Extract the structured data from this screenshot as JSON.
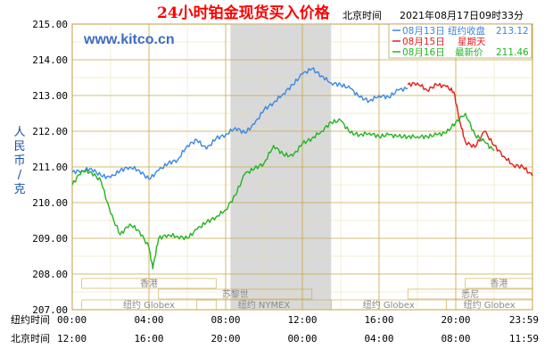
{
  "chart_data": {
    "type": "line",
    "title": "24小时铂金现货买入价格",
    "header_right": {
      "timezone_label": "北京时间",
      "timestamp": "2021年08月17日09时33分"
    },
    "source_text": "www.kitco.cn",
    "ylabel": "人民币/克",
    "ylim": [
      207,
      215
    ],
    "yticks": [
      "215.00",
      "214.00",
      "213.00",
      "212.00",
      "211.00",
      "210.00",
      "209.00",
      "208.00",
      "207.00"
    ],
    "xaxis_rows": [
      {
        "label": "纽约时间",
        "ticks": [
          "00:00",
          "04:00",
          "08:00",
          "12:00",
          "16:00",
          "20:00",
          "23:59"
        ]
      },
      {
        "label": "北京时间",
        "ticks": [
          "12:00",
          "16:00",
          "20:00",
          "00:00",
          "04:00",
          "08:00",
          "11:59"
        ]
      }
    ],
    "x_hours_ny": [
      0,
      4,
      8,
      12,
      16,
      20,
      24
    ],
    "shaded_region_ny_hours": [
      8.25,
      13.5
    ],
    "legend": [
      {
        "text": "08月13日",
        "extra": "纽约收盘",
        "value": "213.12",
        "color": "#3b88e0"
      },
      {
        "text": "08月15日",
        "extra": "星期天",
        "value": "",
        "color": "#e51c1c"
      },
      {
        "text": "08月16日",
        "extra": "最新价",
        "value": "211.46",
        "color": "#22b422"
      }
    ],
    "sessions": [
      {
        "label": "香港",
        "start": 0.5,
        "end": 7.5,
        "row": 0
      },
      {
        "label": "苏黎世",
        "start": 4.5,
        "end": 12.5,
        "row": 1
      },
      {
        "label": "纽约 NYMEX",
        "start": 6.5,
        "end": 13.5,
        "row": 2
      },
      {
        "label": "纽约 Globex",
        "start": 0.5,
        "end": 7.5,
        "row": 2
      },
      {
        "label": "纽约 Globex",
        "start": 13.5,
        "end": 19.5,
        "row": 2
      },
      {
        "label": "悉尼",
        "start": 17.5,
        "end": 24,
        "row": 1
      },
      {
        "label": "香港",
        "start": 20.5,
        "end": 24,
        "row": 0
      },
      {
        "label": "纽约 Globex",
        "start": 19.5,
        "end": 24,
        "row": 2
      }
    ],
    "series": [
      {
        "key": "blue",
        "color": "#3b88e0",
        "x": [
          0,
          0.5,
          1,
          1.5,
          2,
          2.5,
          3,
          3.5,
          4,
          4.5,
          5,
          5.5,
          6,
          6.5,
          7,
          7.5,
          8,
          8.5,
          9,
          9.5,
          10,
          10.5,
          11,
          11.5,
          12,
          12.5,
          13,
          13.5,
          14,
          14.5,
          15,
          15.5,
          16,
          16.5,
          17,
          17.5
        ],
        "y": [
          210.85,
          210.9,
          210.95,
          210.75,
          210.7,
          210.9,
          211.0,
          210.9,
          210.65,
          210.9,
          211.1,
          211.2,
          211.6,
          211.75,
          211.5,
          211.8,
          211.9,
          212.1,
          211.95,
          212.2,
          212.6,
          212.8,
          213.05,
          213.3,
          213.6,
          213.75,
          213.55,
          213.35,
          213.3,
          213.2,
          212.95,
          212.85,
          213.0,
          212.95,
          213.15,
          213.2
        ]
      },
      {
        "key": "red",
        "color": "#e51c1c",
        "x": [
          17.5,
          18,
          18.5,
          19,
          19.5,
          19.9,
          20.2,
          20.5,
          21,
          21.5,
          22,
          22.5,
          23,
          23.5,
          24
        ],
        "y": [
          213.3,
          213.35,
          213.15,
          213.3,
          213.25,
          213.1,
          212.3,
          211.7,
          211.55,
          212.0,
          211.6,
          211.3,
          211.05,
          211.0,
          210.75
        ]
      },
      {
        "key": "green",
        "color": "#22b422",
        "x": [
          0,
          0.5,
          1,
          1.5,
          2,
          2.5,
          3,
          3.5,
          4,
          4.2,
          4.5,
          5,
          5.5,
          6,
          6.5,
          7,
          7.5,
          8,
          8.5,
          9,
          9.5,
          10,
          10.5,
          11,
          11.5,
          12,
          12.5,
          13,
          13.5,
          14,
          14.5,
          15,
          15.5,
          16,
          16.5,
          17,
          17.5,
          18,
          18.5,
          19,
          19.5,
          20,
          20.5,
          21,
          21.5,
          22
        ],
        "y": [
          210.5,
          210.9,
          210.85,
          210.6,
          209.7,
          209.1,
          209.4,
          209.2,
          208.75,
          208.15,
          209.0,
          209.1,
          209.05,
          209.0,
          209.25,
          209.45,
          209.6,
          209.8,
          210.2,
          210.8,
          210.95,
          211.1,
          211.6,
          211.35,
          211.3,
          211.65,
          211.8,
          212.0,
          212.25,
          212.3,
          211.95,
          211.9,
          211.95,
          211.85,
          211.9,
          211.85,
          211.85,
          211.85,
          211.85,
          211.9,
          211.95,
          212.25,
          212.5,
          211.9,
          211.7,
          211.45
        ]
      }
    ]
  }
}
